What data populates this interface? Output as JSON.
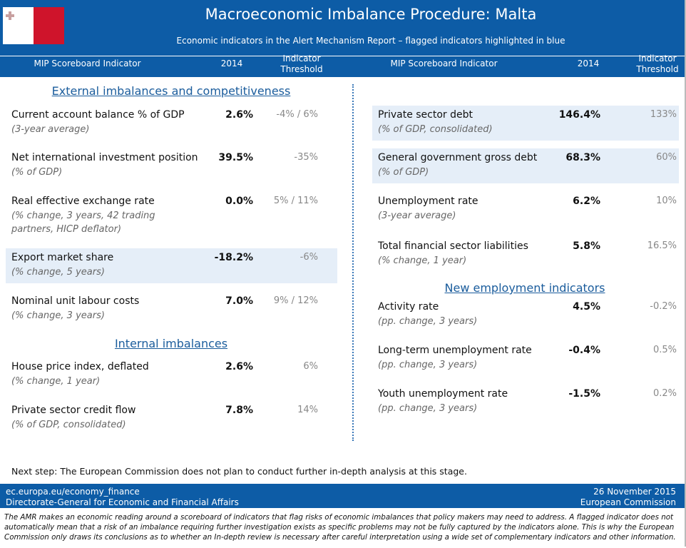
{
  "header": {
    "title": "Macroeconomic Imbalance Procedure: Malta",
    "subtitle": "Economic indicators in the Alert Mechanism Report – flagged indicators highlighted in blue"
  },
  "columns": {
    "indicator": "MIP Scoreboard Indicator",
    "year": "2014",
    "threshold": "Indicator Threshold"
  },
  "left": {
    "sections": [
      {
        "title": "External imbalances and competitiveness",
        "items": [
          {
            "name": "Current account balance % of GDP",
            "note": "(3-year average)",
            "value": "2.6%",
            "threshold": "-4% / 6%",
            "flagged": false
          },
          {
            "name": "Net international investment position",
            "note": "(% of GDP)",
            "value": "39.5%",
            "threshold": "-35%",
            "flagged": false
          },
          {
            "name": "Real effective exchange rate",
            "note": "(% change, 3 years, 42 trading partners, HICP deflator)",
            "value": "0.0%",
            "threshold": "5% / 11%",
            "flagged": false
          },
          {
            "name": "Export market share",
            "note": "(% change, 5 years)",
            "value": "-18.2%",
            "threshold": "-6%",
            "flagged": true
          },
          {
            "name": "Nominal unit labour costs",
            "note": "(% change, 3 years)",
            "value": "7.0%",
            "threshold": "9% / 12%",
            "flagged": false
          }
        ]
      },
      {
        "title": "Internal imbalances",
        "items": [
          {
            "name": "House price index, deflated",
            "note": "(% change, 1 year)",
            "value": "2.6%",
            "threshold": "6%",
            "flagged": false
          },
          {
            "name": "Private sector credit flow",
            "note": "(% of GDP, consolidated)",
            "value": "7.8%",
            "threshold": "14%",
            "flagged": false
          }
        ]
      }
    ]
  },
  "right": {
    "items": [
      {
        "name": "Private sector debt",
        "note": "(% of GDP, consolidated)",
        "value": "146.4%",
        "threshold": "133%",
        "flagged": true
      },
      {
        "name": "General government gross debt",
        "note": "(% of GDP)",
        "value": "68.3%",
        "threshold": "60%",
        "flagged": true
      },
      {
        "name": "Unemployment rate",
        "note": "(3-year average)",
        "value": "6.2%",
        "threshold": "10%",
        "flagged": false
      },
      {
        "name": "Total financial sector liabilities",
        "note": "(% change, 1 year)",
        "value": "5.8%",
        "threshold": "16.5%",
        "flagged": false
      }
    ],
    "sections": [
      {
        "title": "New employment indicators",
        "items": [
          {
            "name": "Activity rate",
            "note": "(pp. change, 3 years)",
            "value": "4.5%",
            "threshold": "-0.2%",
            "flagged": false
          },
          {
            "name": "Long-term unemployment rate",
            "note": "(pp. change, 3 years)",
            "value": "-0.4%",
            "threshold": "0.5%",
            "flagged": false
          },
          {
            "name": "Youth unemployment rate",
            "note": "(pp. change, 3 years)",
            "value": "-1.5%",
            "threshold": "0.2%",
            "flagged": false
          }
        ]
      }
    ]
  },
  "next_step": "Next step: The European Commission does not plan to conduct further in-depth analysis at this stage.",
  "footer": {
    "url": "ec.europa.eu/economy_finance",
    "dg": "Directorate-General for Economic and Financial Affairs",
    "date": "26 November 2015",
    "org": "European Commission"
  },
  "disclaimer": "The AMR makes an economic reading around a scoreboard of indicators that flag risks of economic imbalances that policy makers may need to address. A flagged indicator does not automatically mean that a risk of an imbalance requiring further investigation exists as specific problems may not be fully captured by the indicators alone. This is why the European Commission only draws its conclusions as to whether an In-depth review is necessary after careful interpretation using a wide set of complementary indicators and other information."
}
